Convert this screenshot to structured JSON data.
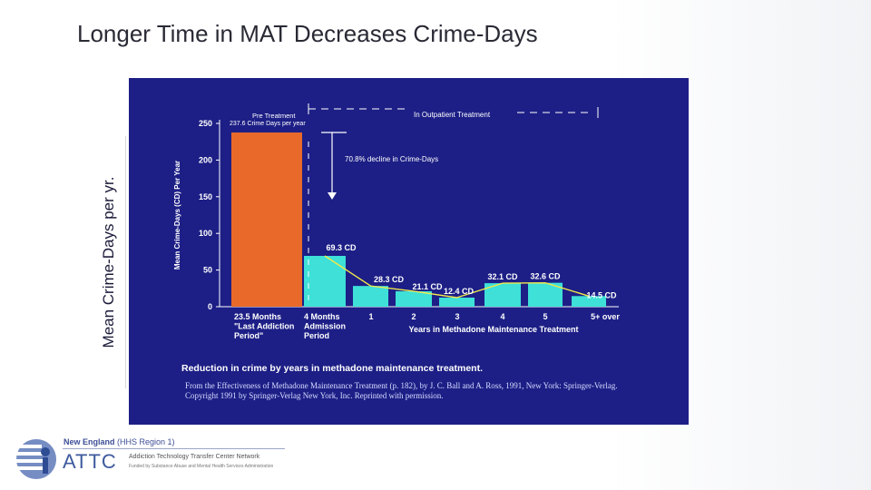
{
  "slide": {
    "title": "Longer Time in MAT Decreases Crime-Days",
    "side_label": "Mean Crime-Days per yr."
  },
  "chart_data": {
    "type": "bar",
    "ylabel": "Mean Crime-Days (CD) Per Year",
    "xlabel": "Years in Methadone Maintenance Treatment",
    "ylim": [
      0,
      250
    ],
    "yticks": [
      "0",
      "50",
      "100",
      "150",
      "200",
      "250"
    ],
    "categories": [
      "23.5 Months \"Last Addiction Period\"",
      "4 Months Admission Period",
      "1",
      "2",
      "3",
      "4",
      "5",
      "5+ over"
    ],
    "values": [
      237.6,
      69.3,
      28.3,
      21.1,
      12.4,
      32.1,
      32.6,
      14.5
    ],
    "data_labels": [
      "",
      "69.3 CD",
      "28.3 CD",
      "21.1 CD",
      "12.4 CD",
      "32.1 CD",
      "32.6 CD",
      "14.5 CD"
    ],
    "cat_label_lines": [
      [
        "23.5 Months",
        "\"Last Addiction",
        "Period\""
      ],
      [
        "4 Months",
        "Admission",
        "Period"
      ],
      [
        "1"
      ],
      [
        "2"
      ],
      [
        "3"
      ],
      [
        "4"
      ],
      [
        "5"
      ],
      [
        "5+ over"
      ]
    ],
    "bar_colors": {
      "pre": "#e8692a",
      "treatment": "#3ee0d8"
    },
    "trend_line": true,
    "annotations": {
      "pre_treatment_title": "Pre Treatment",
      "pre_treatment_value": "237.6 Crime Days per year",
      "outpatient": "In Outpatient Treatment",
      "decline": "70.8% decline in Crime-Days"
    },
    "caption": "Reduction in crime by years in methadone maintenance treatment.",
    "source_lines": [
      "From the Effectiveness of Methadone Maintenance Treatment (p. 182), by J. C. Ball and A. Ross, 1991, New York: Springer-Verlag.",
      "Copyright 1991 by Springer-Verlag New York, Inc. Reprinted with permission."
    ]
  },
  "logo": {
    "region": "New England",
    "region_sub": "(HHS Region 1)",
    "name": "ATTC",
    "network": "Addiction Technology Transfer Center Network",
    "funding": "Funded by Substance Abuse and Mental Health Services Administration"
  }
}
